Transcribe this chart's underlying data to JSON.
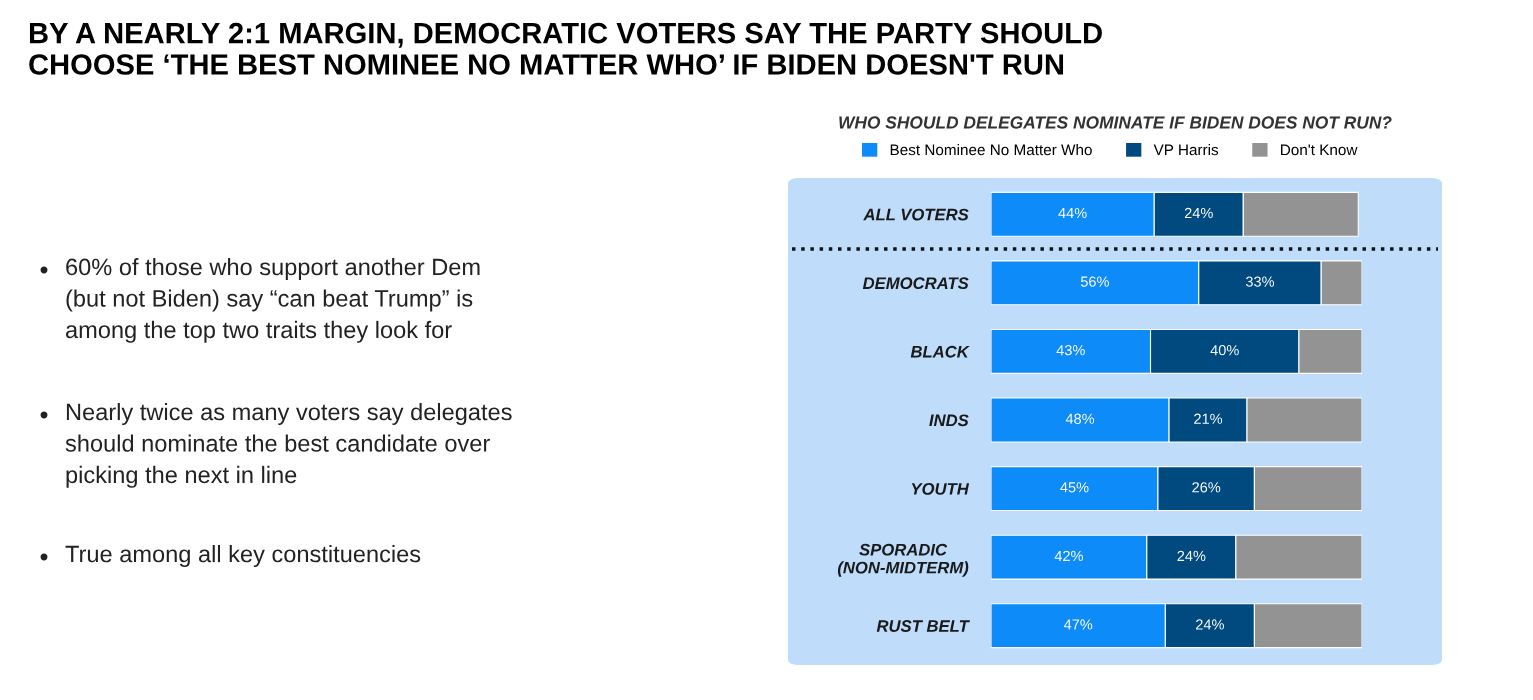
{
  "chart_data": {
    "type": "bar",
    "orientation": "horizontal",
    "stacked": true,
    "title": "BY A NEARLY 2:1 MARGIN, DEMOCRATIC VOTERS SAY THE PARTY SHOULD\nCHOOSE ‘THE BEST NOMINEE NO MATTER WHO’ IF BIDEN DOESN'T RUN",
    "subtitle": "WHO SHOULD DELEGATES NOMINATE IF BIDEN DOES NOT RUN?",
    "annotations": [
      "60% of those who support another Dem\n(but not Biden) say “can beat Trump” is\namong the top two traits they look for",
      "Nearly twice as many voters say delegates\nshould nominate the best candidate over\npicking the next in line",
      "True among all key constituencies"
    ],
    "categories": [
      "ALL VOTERS",
      "DEMOCRATS",
      "BLACK",
      "INDS",
      "YOUTH",
      "SPORADIC\n(NON-MIDTERM)",
      "RUST BELT"
    ],
    "series": [
      {
        "name": "Best Nominee No Matter Who",
        "color": "#0d8bf9",
        "values": [
          44,
          56,
          43,
          48,
          45,
          42,
          47
        ],
        "value_labels": [
          "44%",
          "56%",
          "43%",
          "48%",
          "45%",
          "42%",
          "47%"
        ]
      },
      {
        "name": "VP Harris",
        "color": "#004a80",
        "values": [
          24,
          33,
          40,
          21,
          26,
          24,
          24
        ],
        "value_labels": [
          "24%",
          "33%",
          "40%",
          "21%",
          "26%",
          "24%",
          "24%"
        ]
      },
      {
        "name": "Don't Know",
        "color": "#939393",
        "values": [
          31,
          11,
          17,
          31,
          29,
          34,
          29
        ]
      }
    ],
    "legend": "top",
    "grid": false,
    "tick_labels": "y"
  }
}
